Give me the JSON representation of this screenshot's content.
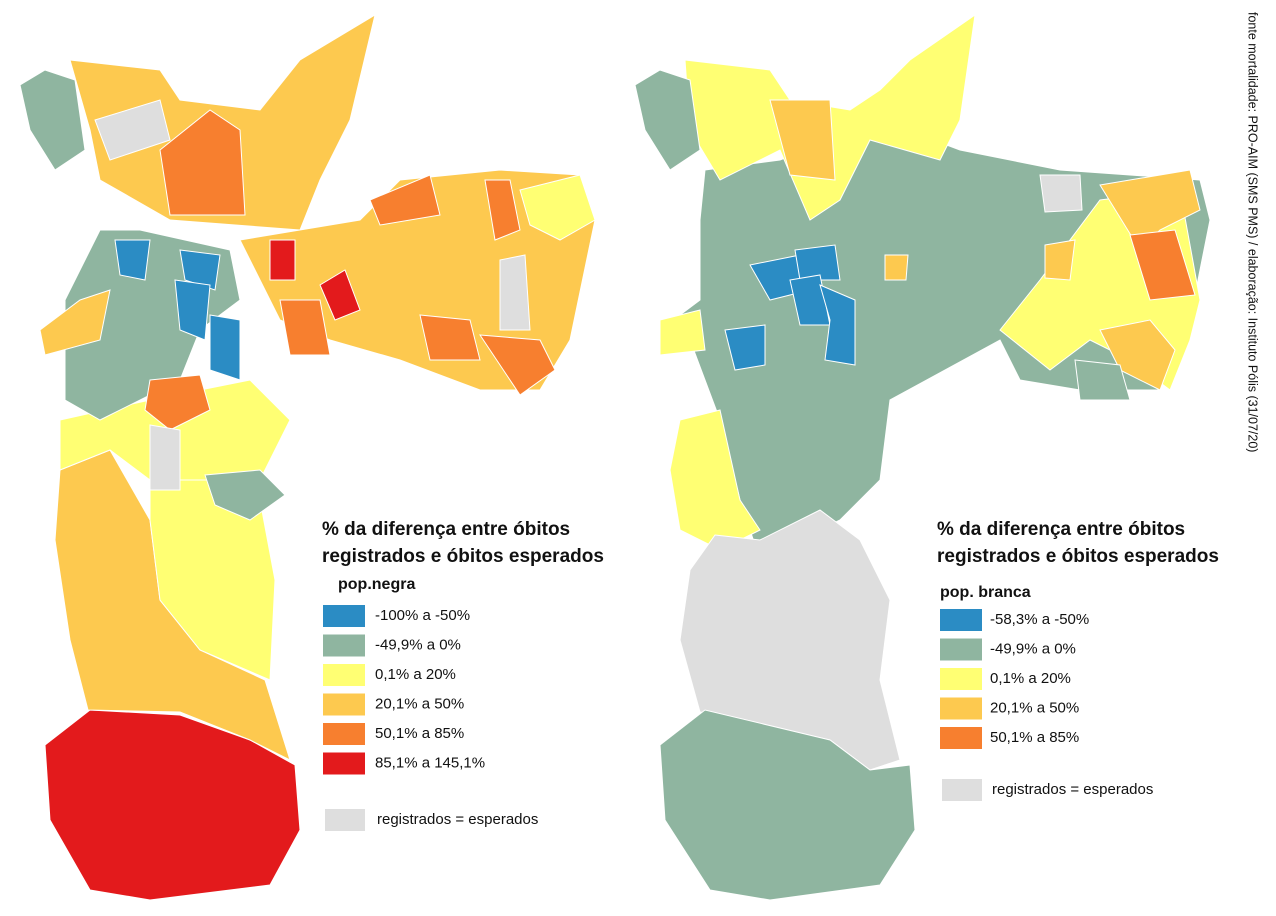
{
  "maps": [
    {
      "legend": {
        "title": [
          "% da diferença entre óbitos",
          "registrados e óbitos esperados"
        ],
        "subtitle": "pop.negra",
        "items": [
          {
            "label": "-100%  a  -50%",
            "color": "#2b8cc4"
          },
          {
            "label": "-49,9%  a  0%",
            "color": "#8fb5a0"
          },
          {
            "label": "0,1%  a  20%",
            "color": "#ffff73"
          },
          {
            "label": "20,1%  a  50%",
            "color": "#fdc94f"
          },
          {
            "label": "50,1%  a  85%",
            "color": "#f77f2f"
          },
          {
            "label": "85,1%  a  145,1%",
            "color": "#e31a1c"
          }
        ],
        "equal": {
          "label": "registrados  =  esperados",
          "color": "#dedede"
        }
      }
    },
    {
      "legend": {
        "title": [
          "% da diferença entre óbitos",
          "registrados e óbitos esperados"
        ],
        "subtitle": "pop. branca",
        "items": [
          {
            "label": "-58,3% a -50%",
            "color": "#2b8cc4"
          },
          {
            "label": "-49,9% a 0%",
            "color": "#8fb5a0"
          },
          {
            "label": "0,1% a 20%",
            "color": "#ffff73"
          },
          {
            "label": "20,1% a 50%",
            "color": "#fdc94f"
          },
          {
            "label": "50,1% a 85%",
            "color": "#f77f2f"
          }
        ],
        "equal": {
          "label": "registrados  =  esperados",
          "color": "#dedede"
        }
      }
    }
  ],
  "source": "fonte  mortalidade:  PRO-AIM  (SMS  PMS)  /  elaboração:  Instituto  Pólis  (31/07/20)"
}
